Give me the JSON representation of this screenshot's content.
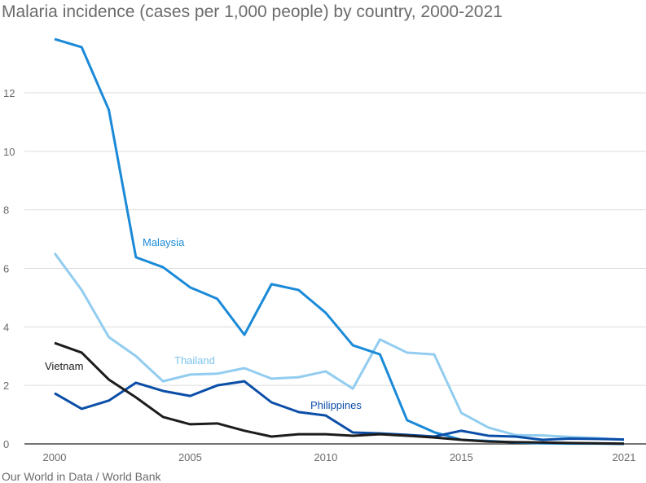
{
  "chart_data": {
    "type": "line",
    "title": "Malaria incidence (cases per 1,000 people) by country, 2000-2021",
    "source": "Our World in Data / World Bank",
    "xlabel": "",
    "ylabel": "",
    "x": [
      2000,
      2001,
      2002,
      2003,
      2004,
      2005,
      2006,
      2007,
      2008,
      2009,
      2010,
      2011,
      2012,
      2013,
      2014,
      2015,
      2016,
      2017,
      2018,
      2019,
      2020,
      2021
    ],
    "x_ticks": [
      2000,
      2005,
      2010,
      2015,
      2021
    ],
    "y_ticks": [
      0,
      2,
      4,
      6,
      8,
      10,
      12
    ],
    "ylim": [
      0,
      14
    ],
    "grid": true,
    "series": [
      {
        "name": "Malaysia",
        "color": "#1a8ad8",
        "values": [
          13.84,
          13.56,
          11.42,
          6.38,
          6.04,
          5.35,
          4.96,
          3.73,
          5.46,
          5.26,
          4.48,
          3.37,
          3.06,
          0.81,
          0.4,
          0.14,
          0.1,
          0.05,
          0.02,
          0.01,
          0.01,
          0.0
        ]
      },
      {
        "name": "Thailand",
        "color": "#92cdf0",
        "values": [
          6.52,
          5.26,
          3.65,
          3.0,
          2.14,
          2.37,
          2.4,
          2.59,
          2.23,
          2.28,
          2.48,
          1.89,
          3.57,
          3.12,
          3.06,
          1.06,
          0.56,
          0.3,
          0.29,
          0.24,
          0.2,
          0.14
        ]
      },
      {
        "name": "Vietnam",
        "color": "#1c1c1c",
        "values": [
          3.45,
          3.12,
          2.2,
          1.59,
          0.92,
          0.67,
          0.7,
          0.45,
          0.25,
          0.33,
          0.33,
          0.28,
          0.33,
          0.28,
          0.22,
          0.14,
          0.08,
          0.06,
          0.05,
          0.03,
          0.02,
          0.01
        ]
      },
      {
        "name": "Philippines",
        "color": "#0b4ea8",
        "values": [
          1.73,
          1.2,
          1.48,
          2.09,
          1.81,
          1.64,
          2.0,
          2.14,
          1.42,
          1.09,
          0.97,
          0.39,
          0.36,
          0.31,
          0.25,
          0.45,
          0.28,
          0.25,
          0.14,
          0.18,
          0.17,
          0.15
        ]
      }
    ]
  }
}
